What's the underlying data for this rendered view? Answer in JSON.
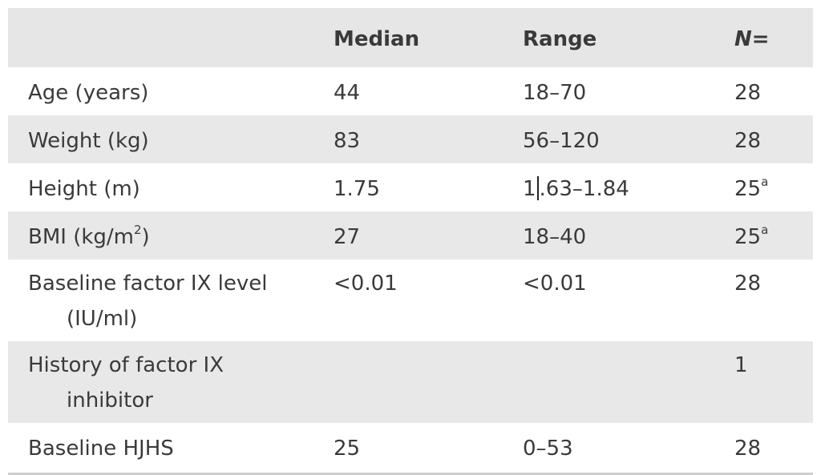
{
  "table": {
    "headers": [
      "",
      "Median",
      "Range",
      "N="
    ],
    "rows": [
      {
        "label": "Age (years)",
        "label_cont": "",
        "median": "44",
        "range": "18–70",
        "n": "28",
        "n_sup": ""
      },
      {
        "label": "Weight (kg)",
        "label_cont": "",
        "median": "83",
        "range": "56–120",
        "n": "28",
        "n_sup": ""
      },
      {
        "label": "Height (m)",
        "label_cont": "",
        "median": "1.75",
        "range_pre": "1",
        "range_post": ".63–1.84",
        "n": "25",
        "n_sup": "a"
      },
      {
        "label_pre": "BMI (kg/m",
        "label_sup": "2",
        "label_post": ")",
        "median": "27",
        "range": "18–40",
        "n": "25",
        "n_sup": "a"
      },
      {
        "label": "Baseline factor IX level",
        "label_cont": "(IU/ml)",
        "median": "<0.01",
        "range": "<0.01",
        "n": "28",
        "n_sup": ""
      },
      {
        "label": "History of factor IX",
        "label_cont": "inhibitor",
        "median": "",
        "range": "",
        "n": "1",
        "n_sup": ""
      },
      {
        "label": "Baseline HJHS",
        "label_cont": "",
        "median": "25",
        "range": "0–53",
        "n": "28",
        "n_sup": ""
      }
    ]
  }
}
